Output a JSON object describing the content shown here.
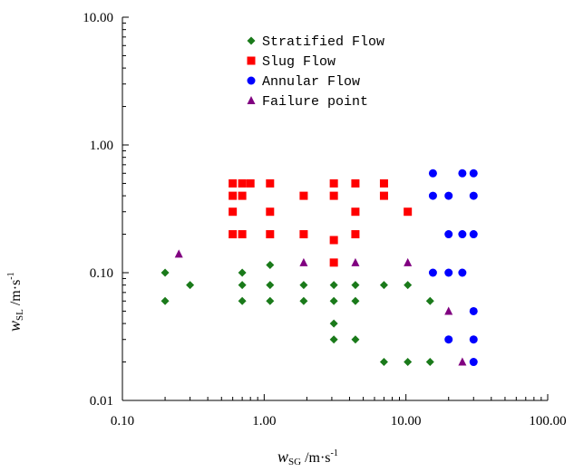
{
  "chart_data": {
    "type": "scatter",
    "x_scale": "log",
    "y_scale": "log",
    "xlim": [
      0.1,
      100
    ],
    "ylim": [
      0.01,
      10
    ],
    "x_ticks": [
      "0.10",
      "1.00",
      "10.00",
      "100.00"
    ],
    "y_ticks": [
      "0.01",
      "0.10",
      "1.00",
      "10.00"
    ],
    "x_tick_values": [
      0.1,
      1,
      10,
      100
    ],
    "y_tick_values": [
      0.01,
      0.1,
      1,
      10
    ],
    "xlabel": {
      "main": "w",
      "sub": "SG",
      "unit": " /m·s",
      "sup": "-1"
    },
    "ylabel": {
      "main": "w",
      "sub": "SL",
      "unit": " /m·s",
      "sup": "-1"
    },
    "grid": false,
    "legend_position": "top-center",
    "series": [
      {
        "name": "Stratified Flow",
        "marker": "diamond",
        "color": "#1a7a1a",
        "points": [
          [
            0.2,
            0.1
          ],
          [
            0.2,
            0.06
          ],
          [
            0.3,
            0.08
          ],
          [
            0.7,
            0.1
          ],
          [
            0.7,
            0.08
          ],
          [
            0.7,
            0.06
          ],
          [
            1.1,
            0.115
          ],
          [
            1.1,
            0.08
          ],
          [
            1.1,
            0.06
          ],
          [
            1.9,
            0.08
          ],
          [
            1.9,
            0.06
          ],
          [
            3.1,
            0.08
          ],
          [
            3.1,
            0.06
          ],
          [
            3.1,
            0.04
          ],
          [
            3.1,
            0.03
          ],
          [
            4.4,
            0.08
          ],
          [
            4.4,
            0.06
          ],
          [
            4.4,
            0.03
          ],
          [
            7,
            0.08
          ],
          [
            7,
            0.02
          ],
          [
            10.3,
            0.08
          ],
          [
            10.3,
            0.02
          ],
          [
            14.8,
            0.06
          ],
          [
            14.8,
            0.02
          ]
        ]
      },
      {
        "name": "Slug Flow",
        "marker": "square",
        "color": "#ff0000",
        "points": [
          [
            0.6,
            0.5
          ],
          [
            0.7,
            0.5
          ],
          [
            0.8,
            0.5
          ],
          [
            1.1,
            0.5
          ],
          [
            0.6,
            0.4
          ],
          [
            0.7,
            0.4
          ],
          [
            1.9,
            0.4
          ],
          [
            0.6,
            0.3
          ],
          [
            1.1,
            0.3
          ],
          [
            0.6,
            0.2
          ],
          [
            0.7,
            0.2
          ],
          [
            1.1,
            0.2
          ],
          [
            1.9,
            0.2
          ],
          [
            3.1,
            0.5
          ],
          [
            3.1,
            0.4
          ],
          [
            3.1,
            0.18
          ],
          [
            3.1,
            0.12
          ],
          [
            4.4,
            0.5
          ],
          [
            4.4,
            0.3
          ],
          [
            4.4,
            0.2
          ],
          [
            7,
            0.5
          ],
          [
            7,
            0.4
          ],
          [
            10.3,
            0.3
          ]
        ]
      },
      {
        "name": "Annular Flow",
        "marker": "circle",
        "color": "#0000ff",
        "points": [
          [
            15.5,
            0.6
          ],
          [
            15.5,
            0.4
          ],
          [
            15.5,
            0.1
          ],
          [
            20,
            0.4
          ],
          [
            20,
            0.2
          ],
          [
            20,
            0.1
          ],
          [
            20,
            0.03
          ],
          [
            25,
            0.6
          ],
          [
            25,
            0.2
          ],
          [
            25,
            0.1
          ],
          [
            30,
            0.6
          ],
          [
            30,
            0.4
          ],
          [
            30,
            0.2
          ],
          [
            30,
            0.05
          ],
          [
            30,
            0.03
          ],
          [
            30,
            0.02
          ]
        ]
      },
      {
        "name": "Failure point",
        "marker": "triangle",
        "color": "#800080",
        "points": [
          [
            0.25,
            0.14
          ],
          [
            1.9,
            0.12
          ],
          [
            4.4,
            0.12
          ],
          [
            10.3,
            0.12
          ],
          [
            20,
            0.05
          ],
          [
            25,
            0.02
          ]
        ]
      }
    ]
  }
}
